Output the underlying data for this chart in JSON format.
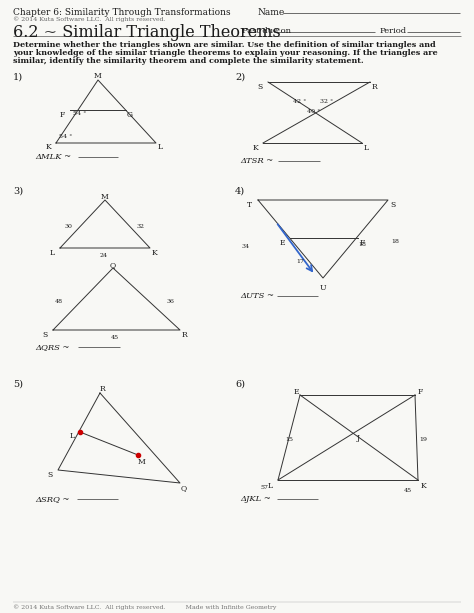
{
  "title_left": "Chapter 6: Similarity Through Transformations",
  "title_right": "Name",
  "copyright": "© 2014 Kuta Software LLC.  All rights reserved.",
  "section": "6.2 ~ Similar Triangle Theorems",
  "due": "Past due on",
  "period": "Period",
  "instructions": "Determine whether the triangles shown are similar. Use the definition of similar triangles and\nyour knowledge of the similar triangle theorems to explain your reasoning. If the triangles are\nsimilar, identify the similarity theorem and complete the similarity statement.",
  "footer": "© 2014 Kuta Software LLC.  All rights reserved.          Made with Infinite Geometry",
  "bg_color": "#f8f8f5",
  "text_color": "#1a1a1a",
  "line_color": "#333333"
}
